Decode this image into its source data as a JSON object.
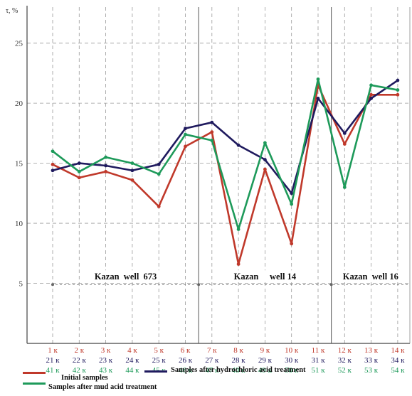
{
  "chart_data": {
    "type": "line",
    "ylabel": "τ, %",
    "ylim": [
      0,
      28
    ],
    "yticks": [
      5,
      10,
      15,
      20,
      25
    ],
    "grid": true,
    "x_labels": {
      "row1": [
        "1 к",
        "2 к",
        "3 к",
        "4 к",
        "5 к",
        "6 к",
        "7 к",
        "8 к",
        "9 к",
        "10 к",
        "11 к",
        "12 к",
        "13 к",
        "14 к"
      ],
      "row2": [
        "21 к",
        "22 к",
        "23 к",
        "24 к",
        "25 к",
        "26 к",
        "27 к",
        "28 к",
        "29 к",
        "30 к",
        "31 к",
        "32 к",
        "33 к",
        "34 к"
      ],
      "row3": [
        "41 к",
        "42 к",
        "43 к",
        "44 к",
        "45 к",
        "46 к",
        "47 к",
        "48 к",
        "49 к",
        "50 к",
        "51 к",
        "52 к",
        "53 к",
        "54 к"
      ]
    },
    "series": [
      {
        "name": "Initial samples",
        "color": "#c0392b",
        "values": [
          14.9,
          13.8,
          14.3,
          13.6,
          11.4,
          16.4,
          17.6,
          6.6,
          14.5,
          8.3,
          21.5,
          16.6,
          20.7,
          20.7
        ]
      },
      {
        "name": "Samples after hydrochloric acid treatment",
        "color": "#1f1a5e",
        "values": [
          14.4,
          15.0,
          14.8,
          14.4,
          14.9,
          17.9,
          18.4,
          16.5,
          15.3,
          12.5,
          20.4,
          17.5,
          20.4,
          21.9
        ]
      },
      {
        "name": "Samples after mud acid treatment",
        "color": "#1e9a5a",
        "values": [
          16.0,
          14.3,
          15.5,
          15.0,
          14.1,
          17.4,
          16.9,
          9.5,
          16.7,
          11.6,
          22.0,
          13.0,
          21.5,
          21.1
        ]
      }
    ],
    "regions": [
      {
        "label": "Kazan  well  673",
        "from": 1,
        "to": 6
      },
      {
        "label": "Kazan     well 14",
        "from": 7,
        "to": 11
      },
      {
        "label": "Kazan  well 16",
        "from": 12,
        "to": 14
      }
    ],
    "region_separators_after": [
      6,
      11
    ]
  },
  "legend": {
    "initial": "Initial samples",
    "hydrochloric": "Samples after hydrochloric acid treatment",
    "mud": "Samples after mud acid treatment"
  }
}
